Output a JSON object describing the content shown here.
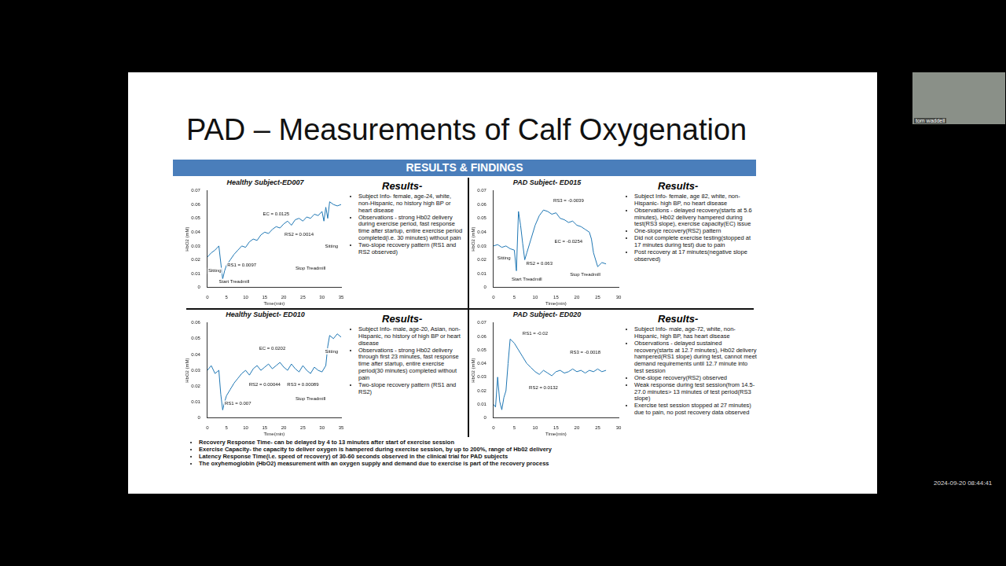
{
  "slide": {
    "title": "PAD – Measurements of Calf Oxygenation",
    "banner": "RESULTS & FINDINGS",
    "panels": [
      {
        "heading": "Results-",
        "bullets": [
          "Subject Info- female, age-24, white, non-Hispanic, no history high BP or heart disease",
          "Observations - strong Hb02 delivery during exercise period, fast response time after startup, entire exercise period completed(i.e. 30 minutes) without pain",
          "Two-slope recovery pattern (RS1 and RS2 observed)"
        ]
      },
      {
        "heading": "Results-",
        "bullets": [
          "Subject Info- female, age 82, white, non-Hispanic- high BP, no heart disease",
          "Observations - delayed recovery(starts at 5.6 minutes), Hb02 delivery hampered during test(RS3 slope), exercise capacity(EC) issue",
          "One-slope recovery(RS2) pattern",
          "Did not complete exercise testing(stopped at 17 minutes during test) due to pain",
          "Post recovery at 17 minutes(negative slope observed)"
        ]
      },
      {
        "heading": "Results-",
        "bullets": [
          "Subject Info- male, age-20, Asian, non-Hispanic, no history of high BP or heart disease",
          "Observations - strong Hb02 delivery through first 23 minutes, fast response time after startup, entire exercise period(30 minutes) completed without pain",
          "Two-slope recovery pattern (RS1 and RS2)"
        ]
      },
      {
        "heading": "Results-",
        "bullets": [
          "Subject Info- male, age-72, white, non-Hispanic, high BP, has heart disease",
          "Observations - delayed sustained recovery(starts at 12.7 minutes), Hb02 delivery hampered(RS1 slope) during test, cannot meet demand requirements until 12.7 minute into test session",
          "One-slope recovery(RS2) observed",
          "Weak response during test session(from 14.5-27.0 minutes> 13 minutes of test period(RS3 slope)",
          "Exercise test session stopped at 27 minutes) due to pain, no post recovery data observed"
        ]
      }
    ],
    "footer_bullets": [
      "Recovery Response Time- can be delayed by 4 to 13 minutes after start of exercise session",
      "Exercise Capacity- the capacity to deliver oxygen is hampered during exercise session, by up to 200%, range of Hb02 delivery",
      "Latency Response Time(i.e. speed of recovery) of 30-60 seconds observed in the clinical trial for PAD subjects",
      "The oxyhemoglobin (HbO2) measurement with an oxygen supply and demand due to exercise is part of the recovery process"
    ]
  },
  "meeting": {
    "participant": "tom waddell",
    "timestamp": "2024-09-20 08:44:41"
  },
  "chart_data": [
    {
      "type": "line",
      "title": "Healthy Subject-ED007",
      "x_label": "Time(min)",
      "y_label": "HbO2 (mM)",
      "color": "#1f77b4",
      "grid": false,
      "x": [
        0,
        1,
        2,
        3,
        3.5,
        4,
        4.5,
        5,
        6,
        7,
        8,
        9,
        10,
        11,
        12,
        13,
        14,
        15,
        16,
        17,
        18,
        19,
        20,
        21,
        22,
        23,
        24,
        25,
        26,
        27,
        28,
        29,
        30,
        30.5,
        31,
        31.5,
        32,
        33,
        34,
        35
      ],
      "values": [
        0.022,
        0.025,
        0.027,
        0.03,
        0.018,
        0.006,
        0.012,
        0.016,
        0.02,
        0.024,
        0.027,
        0.03,
        0.029,
        0.033,
        0.035,
        0.034,
        0.038,
        0.04,
        0.039,
        0.042,
        0.044,
        0.043,
        0.046,
        0.048,
        0.045,
        0.049,
        0.05,
        0.048,
        0.051,
        0.05,
        0.053,
        0.052,
        0.055,
        0.048,
        0.058,
        0.05,
        0.062,
        0.06,
        0.059,
        0.06
      ],
      "xlim": [
        0,
        35
      ],
      "xticks": [
        0,
        5,
        10,
        15,
        20,
        25,
        30,
        35
      ],
      "ylim": [
        0,
        0.07
      ],
      "yticks": [
        0,
        0.01,
        0.02,
        0.03,
        0.04,
        0.05,
        0.06,
        0.07
      ],
      "annotations": [
        {
          "text": "Sitting",
          "x": 1.5,
          "y": 0.012
        },
        {
          "text": "Start Treadmill",
          "x": 7,
          "y": 0.004
        },
        {
          "text": "RS1 = 0.0097",
          "x": 9,
          "y": 0.016
        },
        {
          "text": "EC = 0.0125",
          "x": 18,
          "y": 0.053
        },
        {
          "text": "RS2 = 0.0014",
          "x": 24,
          "y": 0.038
        },
        {
          "text": "Stop Treadmill",
          "x": 27,
          "y": 0.014
        },
        {
          "text": "Sitting",
          "x": 32.5,
          "y": 0.03
        }
      ]
    },
    {
      "type": "line",
      "title": "PAD Subject- ED015",
      "x_label": "Time(min)",
      "y_label": "HbO2 (mM)",
      "color": "#1f77b4",
      "grid": false,
      "x": [
        0,
        1,
        2,
        3,
        4,
        5,
        5.5,
        6,
        6.5,
        7,
        7.5,
        8,
        9,
        10,
        11,
        12,
        13,
        14,
        15,
        16,
        17,
        18,
        19,
        20,
        21,
        22,
        23,
        23.5,
        24,
        25,
        26,
        27
      ],
      "values": [
        0.03,
        0.031,
        0.029,
        0.03,
        0.028,
        0.027,
        0.012,
        0.055,
        0.045,
        0.032,
        0.02,
        0.025,
        0.035,
        0.045,
        0.052,
        0.056,
        0.055,
        0.053,
        0.054,
        0.05,
        0.049,
        0.047,
        0.048,
        0.045,
        0.044,
        0.042,
        0.04,
        0.035,
        0.025,
        0.015,
        0.018,
        0.017
      ],
      "xlim": [
        0,
        30
      ],
      "xticks": [
        0,
        5,
        10,
        15,
        20,
        25,
        30
      ],
      "ylim": [
        0,
        0.07
      ],
      "yticks": [
        0,
        0.01,
        0.02,
        0.03,
        0.04,
        0.05,
        0.06,
        0.07
      ],
      "annotations": [
        {
          "text": "Sitting",
          "x": 2.5,
          "y": 0.021
        },
        {
          "text": "Start Treadmill",
          "x": 8,
          "y": 0.006
        },
        {
          "text": "RS2 = 0.063",
          "x": 11,
          "y": 0.017
        },
        {
          "text": "RS3 = -0.0039",
          "x": 18,
          "y": 0.063
        },
        {
          "text": "EC = -0.0254",
          "x": 18,
          "y": 0.033
        },
        {
          "text": "Stop Treadmill",
          "x": 22,
          "y": 0.009
        }
      ]
    },
    {
      "type": "line",
      "title": "Healthy Subject- ED010",
      "x_label": "Time(min)",
      "y_label": "HbO2 (mM)",
      "color": "#1f77b4",
      "grid": false,
      "x": [
        0,
        1,
        2,
        3,
        3.5,
        4,
        4.5,
        5,
        6,
        7,
        8,
        9,
        10,
        11,
        12,
        13,
        14,
        15,
        16,
        17,
        18,
        19,
        20,
        21,
        22,
        23,
        24,
        25,
        26,
        27,
        28,
        29,
        30,
        31,
        31.5,
        32,
        33,
        34,
        35
      ],
      "values": [
        0.03,
        0.033,
        0.028,
        0.03,
        0.015,
        0.005,
        0.01,
        0.014,
        0.018,
        0.022,
        0.025,
        0.028,
        0.03,
        0.027,
        0.031,
        0.033,
        0.03,
        0.032,
        0.034,
        0.031,
        0.033,
        0.035,
        0.032,
        0.03,
        0.034,
        0.031,
        0.029,
        0.033,
        0.03,
        0.028,
        0.032,
        0.03,
        0.029,
        0.033,
        0.045,
        0.052,
        0.05,
        0.053,
        0.051
      ],
      "xlim": [
        0,
        35
      ],
      "xticks": [
        0,
        5,
        10,
        15,
        20,
        25,
        30,
        35
      ],
      "ylim": [
        0,
        0.06
      ],
      "yticks": [
        0,
        0.01,
        0.02,
        0.03,
        0.04,
        0.05,
        0.06
      ],
      "annotations": [
        {
          "text": "RS1 = 0.007",
          "x": 8,
          "y": 0.009
        },
        {
          "text": "RS2 = 0.00044",
          "x": 15,
          "y": 0.021
        },
        {
          "text": "EC = 0.0202",
          "x": 17,
          "y": 0.044
        },
        {
          "text": "RS3 = 0.00089",
          "x": 25,
          "y": 0.021
        },
        {
          "text": "Stop Treadmill",
          "x": 27,
          "y": 0.012
        },
        {
          "text": "Sitting",
          "x": 32.5,
          "y": 0.042
        }
      ]
    },
    {
      "type": "line",
      "title": "PAD Subject- ED020",
      "x_label": "Time(min)",
      "y_label": "HbO2 (mM)",
      "color": "#1f77b4",
      "grid": false,
      "x": [
        0,
        0.5,
        1,
        1.5,
        2,
        2.5,
        3,
        3.5,
        4,
        5,
        6,
        7,
        8,
        9,
        10,
        11,
        12,
        13,
        14,
        15,
        16,
        17,
        18,
        19,
        20,
        21,
        22,
        23,
        24,
        25,
        26,
        27
      ],
      "values": [
        0.01,
        0.008,
        0.03,
        0.012,
        0.006,
        0.015,
        0.02,
        0.04,
        0.058,
        0.055,
        0.05,
        0.045,
        0.04,
        0.037,
        0.034,
        0.032,
        0.035,
        0.033,
        0.031,
        0.034,
        0.035,
        0.033,
        0.034,
        0.036,
        0.034,
        0.035,
        0.033,
        0.035,
        0.034,
        0.036,
        0.034,
        0.035
      ],
      "xlim": [
        0,
        30
      ],
      "xticks": [
        0,
        5,
        10,
        15,
        20,
        25,
        30
      ],
      "ylim": [
        0,
        0.07
      ],
      "yticks": [
        0,
        0.01,
        0.02,
        0.03,
        0.04,
        0.05,
        0.06,
        0.07
      ],
      "annotations": [
        {
          "text": "RS1 = -0.02",
          "x": 10,
          "y": 0.062
        },
        {
          "text": "RS2 = 0.0132",
          "x": 12,
          "y": 0.022
        },
        {
          "text": "RS3 = -0.0018",
          "x": 22,
          "y": 0.048
        }
      ]
    }
  ]
}
